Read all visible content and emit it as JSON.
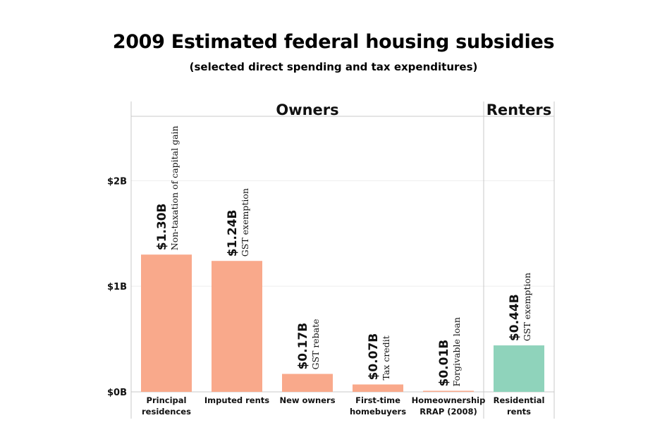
{
  "title": "2009 Estimated federal housing subsidies",
  "subtitle": "(selected direct spending and tax expenditures)",
  "chart_data": {
    "type": "bar",
    "title": "2009 Estimated federal housing subsidies",
    "subtitle": "(selected direct spending and tax expenditures)",
    "groups": [
      {
        "name": "Owners",
        "categories": [
          "Principal residences",
          "Imputed rents",
          "New owners",
          "First-time homebuyers",
          "Homeownership RRAP (2008)"
        ]
      },
      {
        "name": "Renters",
        "categories": [
          "Residential rents"
        ]
      }
    ],
    "categories": [
      [
        "Principal",
        "residences"
      ],
      [
        "Imputed rents"
      ],
      [
        "New owners"
      ],
      [
        "First-time",
        "homebuyers"
      ],
      [
        "Homeownership",
        "RRAP (2008)"
      ],
      [
        "Residential",
        "rents"
      ]
    ],
    "values": [
      1.3,
      1.24,
      0.17,
      0.07,
      0.01,
      0.44
    ],
    "value_labels": [
      "$1.30B",
      "$1.24B",
      "$0.17B",
      "$0.07B",
      "$0.01B",
      "$0.44B"
    ],
    "notes": [
      "Non-taxation of capital gain",
      "GST exemption",
      "GST rebate",
      "Tax credit",
      "Forgivable loan",
      "GST exemption"
    ],
    "bar_colors": [
      "#f9a98b",
      "#f9a98b",
      "#f9a98b",
      "#f9a98b",
      "#f9a98b",
      "#8fd3bb"
    ],
    "ylim": [
      0,
      2.75
    ],
    "yticks": [
      0,
      1,
      2
    ],
    "ytick_labels": [
      "$0B",
      "$1B",
      "$2B"
    ],
    "xlabel": "",
    "ylabel": "",
    "grid": true
  }
}
